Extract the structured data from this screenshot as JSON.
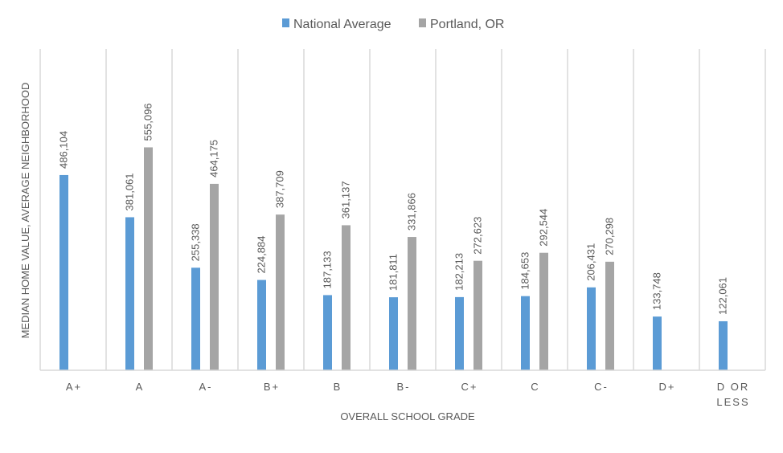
{
  "chart_data": {
    "type": "bar",
    "title": "",
    "xlabel": "OVERALL SCHOOL GRADE",
    "ylabel": "MEDIAN HOME VALUE, AVERAGE NEIGHBORHOOD",
    "categories": [
      "A+",
      "A",
      "A-",
      "B+",
      "B",
      "B-",
      "C+",
      "C",
      "C-",
      "D+",
      "D OR LESS"
    ],
    "category_lines": [
      [
        "A+"
      ],
      [
        "A"
      ],
      [
        "A-"
      ],
      [
        "B+"
      ],
      [
        "B"
      ],
      [
        "B-"
      ],
      [
        "C+"
      ],
      [
        "C"
      ],
      [
        "C-"
      ],
      [
        "D+"
      ],
      [
        "D OR",
        "LESS"
      ]
    ],
    "ylim": [
      0,
      800000
    ],
    "grid": "vertical category separators",
    "legend_position": "top",
    "series": [
      {
        "name": "National Average",
        "color": "#5B9BD5",
        "values": [
          486104,
          381061,
          255338,
          224884,
          187133,
          181811,
          182213,
          184653,
          206431,
          133748,
          122061
        ],
        "labels": [
          "486,104",
          "381,061",
          "255,338",
          "224,884",
          "187,133",
          "181,811",
          "182,213",
          "184,653",
          "206,431",
          "133,748",
          "122,061"
        ]
      },
      {
        "name": "Portland, OR",
        "color": "#A5A5A5",
        "values": [
          null,
          555096,
          464175,
          387709,
          361137,
          331866,
          272623,
          292544,
          270298,
          null,
          null
        ],
        "labels": [
          "",
          "555,096",
          "464,175",
          "387,709",
          "361,137",
          "331,866",
          "272,623",
          "292,544",
          "270,298",
          "",
          ""
        ]
      }
    ]
  }
}
